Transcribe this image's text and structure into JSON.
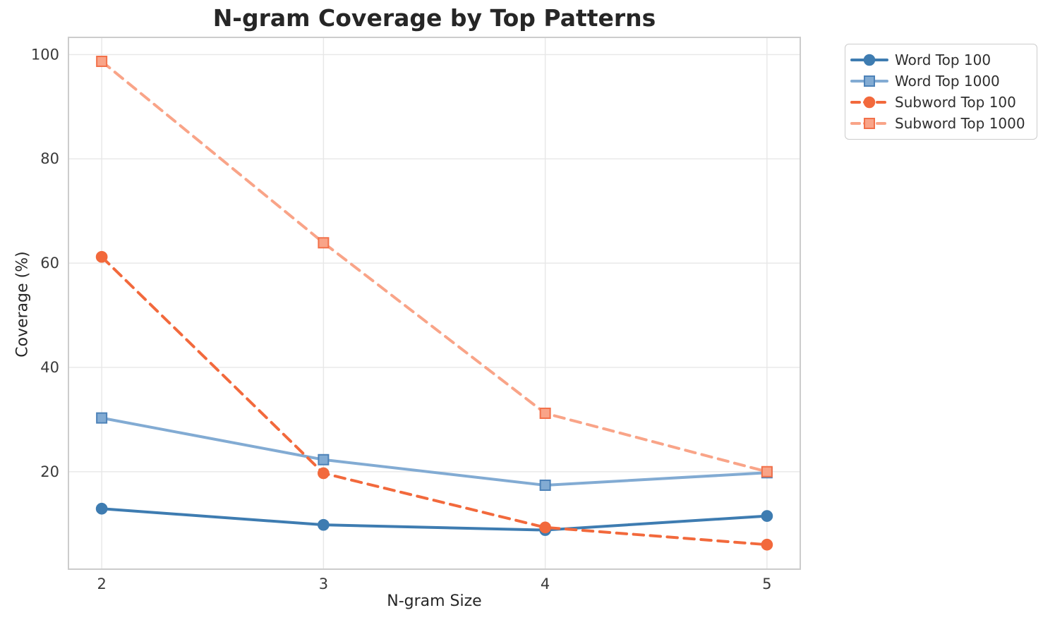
{
  "chart_data": {
    "type": "line",
    "title": "N-gram Coverage by Top Patterns",
    "xlabel": "N-gram Size",
    "ylabel": "Coverage (%)",
    "x": [
      2,
      3,
      4,
      5
    ],
    "xticks": [
      2,
      3,
      4,
      5
    ],
    "yticks": [
      20,
      40,
      60,
      80,
      100
    ],
    "xlim": [
      1.85,
      5.15
    ],
    "ylim": [
      1.3,
      103.3
    ],
    "grid": true,
    "legend_position": "upper right outside plot",
    "series": [
      {
        "name": "Word Top 100",
        "values": [
          12.9,
          9.8,
          8.8,
          11.5
        ],
        "color": "#3e7cb1",
        "line_style": "solid",
        "marker": "circle",
        "marker_edge": "#3e7cb1"
      },
      {
        "name": "Word Top 1000",
        "values": [
          30.3,
          22.3,
          17.4,
          19.8
        ],
        "color": "#82abd3",
        "line_style": "solid",
        "marker": "square",
        "marker_edge": "#4d82b8"
      },
      {
        "name": "Subword Top 100",
        "values": [
          61.2,
          19.7,
          9.3,
          6.0
        ],
        "color": "#f2693c",
        "line_style": "dashed",
        "marker": "circle",
        "marker_edge": "#f2693c"
      },
      {
        "name": "Subword Top 1000",
        "values": [
          98.7,
          63.9,
          31.2,
          20.0
        ],
        "color": "#f9a488",
        "line_style": "dashed",
        "marker": "square",
        "marker_edge": "#f2714a"
      }
    ],
    "style": {
      "grid_color": "#e7e7e7",
      "spine_color": "#cccccc",
      "background": "#ffffff",
      "tick_color": "#3a3a3a",
      "title_color": "#262626"
    }
  }
}
